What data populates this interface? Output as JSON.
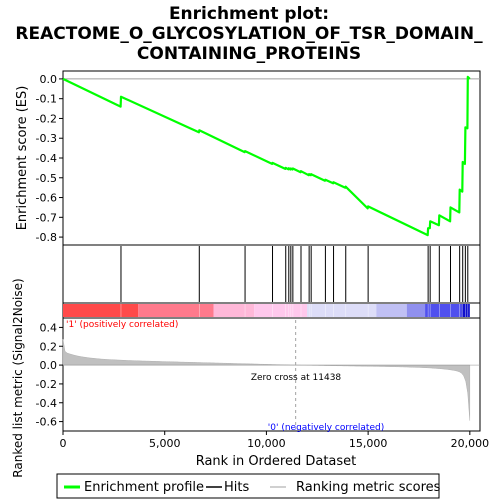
{
  "chart_data": {
    "type": "line",
    "title_lines": [
      "Enrichment plot:",
      "REACTOME_O_GLYCOSYLATION_OF_TSR_DOMAIN_",
      "CONTAINING_PROTEINS"
    ],
    "xlabel": "Rank in Ordered Dataset",
    "ylabel_top": "Enrichment score (ES)",
    "ylabel_bottom": "Ranked list metric (Signal2Noise)",
    "xlim": [
      0,
      20500
    ],
    "x_ticks": [
      0,
      5000,
      10000,
      15000,
      20000
    ],
    "x_tick_labels": [
      "0",
      "5,000",
      "10,000",
      "15,000",
      "20,000"
    ],
    "es_ylim": [
      -0.84,
      0.04
    ],
    "es_ticks": [
      0.0,
      -0.1,
      -0.2,
      -0.3,
      -0.4,
      -0.5,
      -0.6,
      -0.7,
      -0.8
    ],
    "es_tick_labels": [
      "0.0",
      "-0.1",
      "-0.2",
      "-0.3",
      "-0.4",
      "-0.5",
      "-0.6",
      "-0.7",
      "-0.8"
    ],
    "metric_ylim": [
      -0.7,
      0.5
    ],
    "metric_ticks": [
      0.4,
      0.2,
      0.0,
      -0.2,
      -0.4,
      -0.6
    ],
    "metric_tick_labels": [
      "0.4",
      "0.2",
      "0.0",
      "-0.2",
      "-0.4",
      "-0.6"
    ],
    "total_genes": 20000,
    "hits": [
      2850,
      6700,
      8950,
      10300,
      10950,
      11100,
      11200,
      11300,
      11700,
      12100,
      12200,
      12900,
      13300,
      13900,
      15000,
      17950,
      18050,
      18500,
      19050,
      19500,
      19650,
      19780,
      19900
    ],
    "es_points": [
      [
        0,
        0.0
      ],
      [
        2830,
        -0.14
      ],
      [
        2850,
        -0.09
      ],
      [
        6680,
        -0.27
      ],
      [
        6700,
        -0.26
      ],
      [
        8930,
        -0.37
      ],
      [
        8950,
        -0.365
      ],
      [
        10280,
        -0.43
      ],
      [
        10300,
        -0.425
      ],
      [
        10930,
        -0.455
      ],
      [
        10950,
        -0.45
      ],
      [
        11080,
        -0.457
      ],
      [
        11100,
        -0.452
      ],
      [
        11180,
        -0.458
      ],
      [
        11200,
        -0.453
      ],
      [
        11280,
        -0.458
      ],
      [
        11300,
        -0.453
      ],
      [
        11680,
        -0.472
      ],
      [
        11700,
        -0.467
      ],
      [
        12080,
        -0.487
      ],
      [
        12100,
        -0.482
      ],
      [
        12180,
        -0.487
      ],
      [
        12200,
        -0.482
      ],
      [
        12880,
        -0.515
      ],
      [
        12900,
        -0.51
      ],
      [
        13280,
        -0.528
      ],
      [
        13300,
        -0.523
      ],
      [
        13880,
        -0.55
      ],
      [
        13900,
        -0.545
      ],
      [
        14980,
        -0.655
      ],
      [
        15000,
        -0.645
      ],
      [
        17930,
        -0.79
      ],
      [
        17950,
        -0.755
      ],
      [
        18030,
        -0.755
      ],
      [
        18050,
        -0.72
      ],
      [
        18480,
        -0.74
      ],
      [
        18500,
        -0.69
      ],
      [
        19030,
        -0.72
      ],
      [
        19050,
        -0.65
      ],
      [
        19480,
        -0.675
      ],
      [
        19500,
        -0.56
      ],
      [
        19630,
        -0.57
      ],
      [
        19650,
        -0.42
      ],
      [
        19760,
        -0.43
      ],
      [
        19780,
        -0.245
      ],
      [
        19880,
        -0.25
      ],
      [
        19900,
        0.01
      ],
      [
        20000,
        0.0
      ]
    ],
    "zero_cross_label": "Zero cross at 11438",
    "zero_cross": 11438,
    "pos_label": "'1' (positively correlated)",
    "neg_label": "'0' (negatively correlated)",
    "legend": [
      "Enrichment profile",
      "Hits",
      "Ranking metric scores"
    ],
    "colors": {
      "profile": "#00ff00",
      "hits": "#000000",
      "metric_fill": "#c0c0c0",
      "pos_label": "#ff0000",
      "neg_label": "#0000ff"
    },
    "grid": false
  }
}
